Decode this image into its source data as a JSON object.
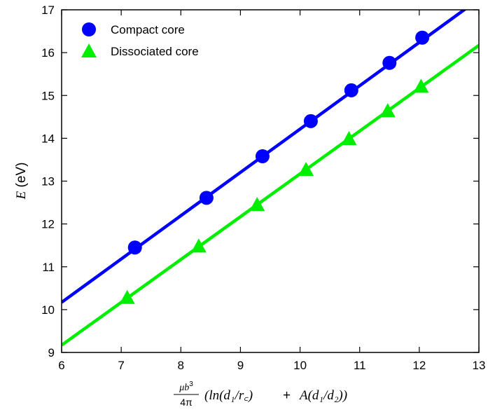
{
  "chart_data": {
    "type": "scatter",
    "title": "",
    "xlabel": {
      "prefix_numerator": "μb",
      "prefix_numerator_exp": "3",
      "prefix_denominator": "4π",
      "ln_part": "(ln(d₁/r꜀)",
      "plus": "+",
      "a_part": "A(d₁/d₂))"
    },
    "ylabel": {
      "symbol": "E",
      "unit": "(eV)"
    },
    "xlim": [
      6,
      13
    ],
    "ylim": [
      9,
      17
    ],
    "xticks": [
      "6",
      "7",
      "8",
      "9",
      "10",
      "11",
      "12",
      "13"
    ],
    "yticks": [
      "9",
      "10",
      "11",
      "12",
      "13",
      "14",
      "15",
      "16",
      "17"
    ],
    "grid": false,
    "legend_position": "top-left",
    "series": [
      {
        "name": "Compact core",
        "color": "#0000ff",
        "marker": "circle",
        "points": [
          [
            7.23,
            11.45
          ],
          [
            8.43,
            12.61
          ],
          [
            9.37,
            13.58
          ],
          [
            10.18,
            14.4
          ],
          [
            10.86,
            15.12
          ],
          [
            11.5,
            15.76
          ],
          [
            12.05,
            16.35
          ]
        ],
        "fit_line": [
          [
            6.0,
            10.17
          ],
          [
            13.0,
            17.25
          ]
        ]
      },
      {
        "name": "Dissociated core",
        "color": "#00ee00",
        "marker": "triangle",
        "points": [
          [
            7.1,
            10.28
          ],
          [
            8.3,
            11.48
          ],
          [
            9.28,
            12.45
          ],
          [
            10.1,
            13.27
          ],
          [
            10.82,
            13.99
          ],
          [
            11.47,
            14.64
          ],
          [
            12.03,
            15.21
          ]
        ],
        "fit_line": [
          [
            6.0,
            9.17
          ],
          [
            13.0,
            16.17
          ]
        ]
      }
    ]
  }
}
